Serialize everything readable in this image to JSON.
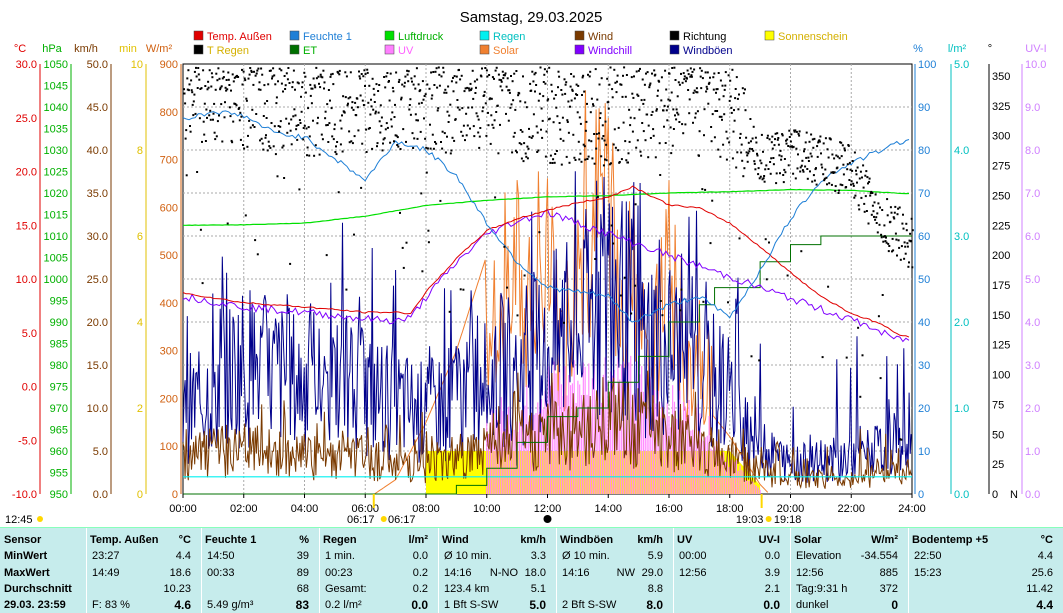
{
  "chart_data": {
    "type": "line",
    "title": "Samstag, 29.03.2025",
    "x_range": [
      "00:00",
      "24:00"
    ],
    "x_ticks": [
      "00:00",
      "02:00",
      "04:00",
      "06:00",
      "08:00",
      "10:00",
      "12:00",
      "14:00",
      "16:00",
      "18:00",
      "20:00",
      "22:00",
      "24:00"
    ],
    "grid": true,
    "legend_position": "top",
    "legend": [
      {
        "name": "Temp. Außen",
        "color": "#e00000"
      },
      {
        "name": "Feuchte 1",
        "color": "#1e7fd6"
      },
      {
        "name": "Luftdruck",
        "color": "#00e000"
      },
      {
        "name": "Regen",
        "color": "#00f0f0"
      },
      {
        "name": "Wind",
        "color": "#7a3a00"
      },
      {
        "name": "Richtung",
        "color": "#000000"
      },
      {
        "name": "Sonnenschein",
        "color": "#ffff00"
      },
      {
        "name": "T Regen",
        "color": "#000000"
      },
      {
        "name": "ET",
        "color": "#007000"
      },
      {
        "name": "UV",
        "color": "#ff80ff"
      },
      {
        "name": "Solar",
        "color": "#f08030"
      },
      {
        "name": "Windchill",
        "color": "#8000ff"
      },
      {
        "name": "Windböen",
        "color": "#00008b"
      }
    ],
    "axes_left": [
      {
        "unit": "°C",
        "color": "#e00000",
        "range": [
          -10,
          30
        ],
        "ticks": [
          "30.0",
          "25.0",
          "20.0",
          "15.0",
          "10.0",
          "5.0",
          "0.0",
          "-5.0",
          "-10.0"
        ]
      },
      {
        "unit": "hPa",
        "color": "#00b000",
        "range": [
          950,
          1050
        ],
        "ticks": [
          "1050",
          "1045",
          "1040",
          "1035",
          "1030",
          "1025",
          "1020",
          "1015",
          "1010",
          "1005",
          "1000",
          "995",
          "990",
          "985",
          "980",
          "975",
          "970",
          "965",
          "960",
          "955",
          "950"
        ]
      },
      {
        "unit": "km/h",
        "color": "#7a3a00",
        "range": [
          0,
          50
        ],
        "ticks": [
          "50.0",
          "45.0",
          "40.0",
          "35.0",
          "30.0",
          "25.0",
          "20.0",
          "15.0",
          "10.0",
          "5.0",
          "0.0"
        ]
      },
      {
        "unit": "min",
        "color": "#e0c000",
        "range": [
          0,
          10
        ],
        "ticks": [
          "10",
          "8",
          "6",
          "4",
          "2",
          "0"
        ]
      },
      {
        "unit": "W/m²",
        "color": "#d06010",
        "range": [
          0,
          900
        ],
        "ticks": [
          "900",
          "800",
          "700",
          "600",
          "500",
          "400",
          "300",
          "200",
          "100",
          "0"
        ]
      }
    ],
    "axes_right": [
      {
        "unit": "%",
        "color": "#1e7fd6",
        "range": [
          0,
          100
        ],
        "ticks": [
          "100",
          "90",
          "80",
          "70",
          "60",
          "50",
          "40",
          "30",
          "20",
          "10",
          "0"
        ]
      },
      {
        "unit": "l/m²",
        "color": "#00c0c0",
        "range": [
          0,
          5
        ],
        "ticks": [
          "5.0",
          "4.0",
          "3.0",
          "2.0",
          "1.0",
          "0.0"
        ]
      },
      {
        "unit": "°",
        "color": "#000000",
        "range": [
          0,
          360
        ],
        "ticks": [
          "350",
          "325",
          "300",
          "275",
          "250",
          "225",
          "200",
          "175",
          "150",
          "125",
          "100",
          "75",
          "50",
          "25",
          "0"
        ],
        "n_label": "N"
      },
      {
        "unit": "UV-I",
        "color": "#d080ff",
        "range": [
          0,
          10
        ],
        "ticks": [
          "10.0",
          "9.0",
          "8.0",
          "7.0",
          "6.0",
          "5.0",
          "4.0",
          "3.0",
          "2.0",
          "1.0",
          "0.0"
        ]
      }
    ],
    "series": [
      {
        "name": "Temp. Außen",
        "unit": "°C",
        "x": [
          0,
          2,
          4,
          6,
          7,
          7.5,
          8,
          9,
          10,
          11,
          12,
          13,
          14,
          14.8,
          16,
          17,
          18,
          19,
          20,
          21,
          22,
          23,
          23.5,
          24
        ],
        "y": [
          8.7,
          7.8,
          7.4,
          6.9,
          6.9,
          6.8,
          8.8,
          11.9,
          14.5,
          15.6,
          16.4,
          17.1,
          17.6,
          18.6,
          16.9,
          16.6,
          15.2,
          13.0,
          10.6,
          8.4,
          6.8,
          5.8,
          4.9,
          4.6
        ]
      },
      {
        "name": "Windchill",
        "unit": "°C",
        "x": [
          0,
          2,
          4,
          6,
          7,
          7.5,
          8,
          9,
          10,
          11,
          12,
          22,
          22.5,
          23,
          23.5,
          24
        ],
        "y": [
          8.4,
          7.4,
          6.9,
          6.3,
          6.1,
          6.4,
          8.3,
          11.5,
          14.2,
          15.4,
          16.2,
          6.2,
          5.7,
          5.0,
          4.4,
          4.4
        ]
      },
      {
        "name": "Feuchte 1",
        "unit": "%",
        "x": [
          0,
          1,
          2,
          3,
          4,
          5,
          6,
          7,
          8,
          9,
          10,
          11,
          12,
          13,
          14,
          14.8,
          16,
          17,
          18,
          19,
          20,
          21,
          22,
          23,
          24
        ],
        "y": [
          87,
          89,
          88,
          84,
          83,
          78,
          73,
          82,
          80,
          74,
          63,
          54,
          48,
          47,
          46,
          40,
          44,
          46,
          41,
          52,
          64,
          73,
          77,
          80,
          83
        ]
      },
      {
        "name": "Luftdruck",
        "unit": "hPa",
        "x": [
          0,
          2,
          4,
          6,
          8,
          10,
          12,
          14,
          16,
          18,
          20,
          22,
          23,
          24
        ],
        "y": [
          1012.5,
          1012.6,
          1013.0,
          1014.6,
          1017.1,
          1018.3,
          1019.1,
          1019.4,
          1020.0,
          1020.3,
          1020.8,
          1020.6,
          1020.2,
          1019.8
        ]
      },
      {
        "name": "ET",
        "unit": "l/m²",
        "x": [
          0,
          7.5,
          9,
          10,
          11,
          12,
          13,
          14,
          15,
          16,
          17,
          17.5,
          19,
          20,
          21,
          24
        ],
        "y": [
          0,
          0,
          0.1,
          0.3,
          0.6,
          0.9,
          1.0,
          1.3,
          1.6,
          2.0,
          2.2,
          2.4,
          2.7,
          2.9,
          3.0,
          3.0
        ]
      },
      {
        "name": "Regen",
        "unit": "l/m²",
        "x": [
          0,
          24
        ],
        "y": [
          0.2,
          0.2
        ]
      },
      {
        "name": "Solar",
        "unit": "W/m²",
        "x": [
          6.3,
          7,
          8,
          9,
          10,
          10.5,
          11,
          11.5,
          12,
          12.5,
          13,
          13.5,
          14,
          14.5,
          15,
          15.5,
          16,
          16.5,
          17,
          17.5,
          18,
          18.5,
          19,
          19.3
        ],
        "y": [
          0,
          30,
          150,
          300,
          500,
          640,
          690,
          520,
          680,
          430,
          760,
          850,
          885,
          620,
          700,
          380,
          720,
          330,
          520,
          160,
          120,
          70,
          20,
          0
        ]
      },
      {
        "name": "UV",
        "unit": "UV-I",
        "x": [
          10,
          11,
          12,
          13,
          14,
          15,
          16,
          17,
          18,
          19
        ],
        "y": [
          2.3,
          2.3,
          3.2,
          3.3,
          3.6,
          3.2,
          2.6,
          2.2,
          1.0,
          0.1
        ]
      },
      {
        "name": "Windböen",
        "unit": "km/h",
        "x": [
          0,
          2,
          4,
          6,
          8,
          10,
          11,
          12,
          13,
          14,
          15,
          16,
          17,
          18,
          19,
          20,
          22,
          24
        ],
        "y": [
          11,
          18,
          15,
          14,
          11,
          16,
          17,
          20,
          22,
          29,
          22,
          20,
          16,
          14,
          7,
          4,
          5,
          7
        ]
      },
      {
        "name": "Wind",
        "unit": "km/h",
        "x": [
          0,
          2,
          4,
          6,
          8,
          10,
          11,
          12,
          13,
          14,
          15,
          16,
          17,
          18,
          19,
          20,
          22,
          24
        ],
        "y": [
          5,
          6,
          5,
          5,
          4,
          6,
          7,
          8,
          9,
          10,
          9,
          8,
          6,
          5,
          3,
          2,
          2,
          3
        ]
      },
      {
        "name": "Richtung",
        "unit": "°",
        "x": [
          0,
          2,
          4,
          6,
          8,
          10,
          12,
          14,
          16,
          18,
          19,
          20,
          21,
          22,
          23,
          24
        ],
        "y": [
          340,
          335,
          325,
          330,
          330,
          330,
          320,
          320,
          330,
          325,
          280,
          285,
          280,
          270,
          230,
          210
        ]
      },
      {
        "name": "Sonnenschein",
        "unit": "min",
        "x": [
          8,
          9,
          10,
          11,
          12,
          13,
          14,
          15,
          16,
          17,
          18,
          19
        ],
        "y": [
          1.0,
          1.0,
          1.0,
          1.0,
          1.0,
          1.0,
          1.0,
          1.0,
          1.0,
          1.0,
          1.0,
          0.2
        ]
      }
    ],
    "annotations": {
      "current_time": "12:45",
      "sunrise_label": "06:17",
      "sunset_label": "19:03",
      "sunset_label2": "19:18",
      "sunrise_hour": 6.28,
      "sunset_hour": 19.05,
      "noon_hour": 12.0
    }
  },
  "stats": {
    "row_labels": {
      "header": "Sensor",
      "min": "MinWert",
      "max": "MaxWert",
      "avg": "Durchschnitt",
      "current": "29.03.  23:59"
    },
    "columns": [
      {
        "title": "Temp. Außen",
        "unit": "°C",
        "min_time": "23:27",
        "min": "4.4",
        "max_time": "14:49",
        "max": "18.6",
        "avg": "10.23",
        "cur_left": "F: 83 %",
        "cur": "4.6"
      },
      {
        "title": "Feuchte 1",
        "unit": "%",
        "min_time": "14:50",
        "min": "39",
        "max_time": "00:33",
        "max": "89",
        "avg": "68",
        "cur_left": "5.49 g/m³",
        "cur": "83"
      },
      {
        "title": "Regen",
        "unit": "l/m²",
        "min_time": "1 min.",
        "min": "0.0",
        "max_time": "00:23",
        "max": "0.2",
        "avg_left": "Gesamt:",
        "avg": "0.2",
        "cur_left": "0.2 l/m²",
        "cur": "0.0"
      },
      {
        "title": "Wind",
        "unit": "km/h",
        "min_time": "Ø 10 min.",
        "min": "3.3",
        "max_time": "14:16",
        "max_mid": "N-NO",
        "max": "18.0",
        "avg_left": "123.4 km",
        "avg": "5.1",
        "cur_left": "1 Bft S-SW",
        "cur": "5.0"
      },
      {
        "title": "Windböen",
        "unit": "km/h",
        "min_time": "Ø 10 min.",
        "min": "5.9",
        "max_time": "14:16",
        "max_mid": "NW",
        "max": "29.0",
        "avg": "8.8",
        "cur_left": "2 Bft S-SW",
        "cur": "8.0"
      },
      {
        "title": "UV",
        "unit": "UV-I",
        "min_time": "00:00",
        "min": "0.0",
        "max_time": "12:56",
        "max": "3.9",
        "avg": "2.1",
        "cur": "0.0"
      },
      {
        "title": "Solar",
        "unit": "W/m²",
        "min_time": "Elevation",
        "min": "-34.554",
        "max_time": "12:56",
        "max": "885",
        "avg_left": "Tag:9:31 h",
        "avg": "372",
        "cur_left": "dunkel",
        "cur": "0"
      },
      {
        "title": "Bodentemp +5",
        "unit": "°C",
        "min_time": "22:50",
        "min": "4.4",
        "max_time": "15:23",
        "max": "25.6",
        "avg": "11.42",
        "cur": "4.4"
      }
    ]
  }
}
